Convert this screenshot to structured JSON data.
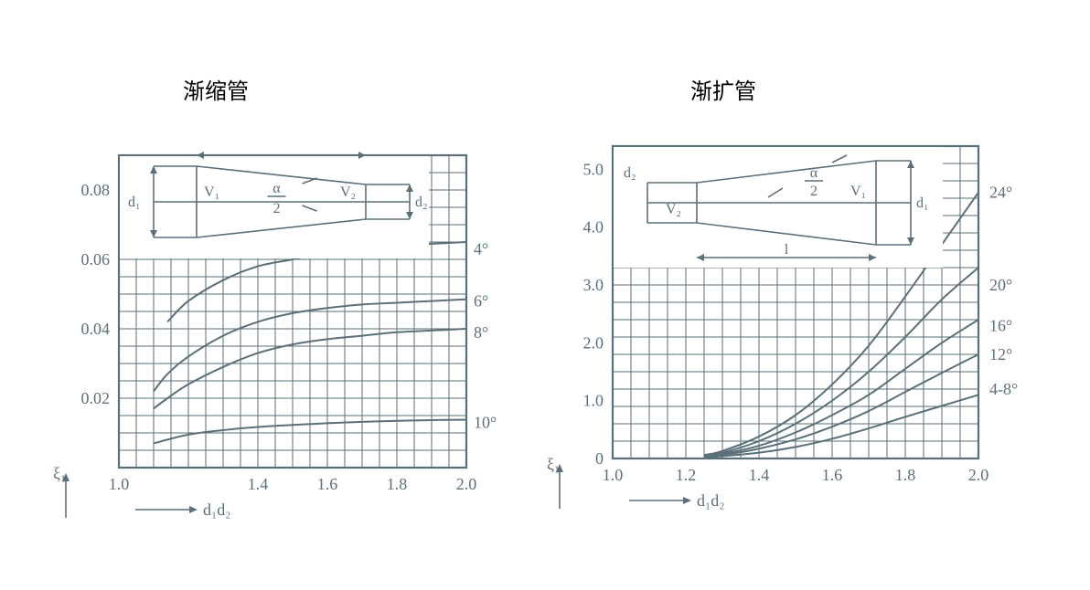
{
  "colors": {
    "background": "#ffffff",
    "ink": "#5a6f78",
    "title_color": "#000000"
  },
  "typography": {
    "title_fontsize": 24,
    "tick_fontsize": 18,
    "axis_label_fontsize": 18,
    "curve_label_fontsize": 18,
    "schematic_fontsize": 16
  },
  "left_chart": {
    "title": "渐缩管",
    "type": "line",
    "y_label": "ξ₁",
    "x_label": "d₁d₂",
    "xlim": [
      1.0,
      2.0
    ],
    "ylim": [
      0.0,
      0.09
    ],
    "xtick_labels": [
      "1.0",
      "1.4",
      "1.6",
      "1.8",
      "2.0"
    ],
    "xtick_values": [
      1.0,
      1.4,
      1.6,
      1.8,
      2.0
    ],
    "ytick_labels": [
      "0.02",
      "0.04",
      "0.06",
      "0.08"
    ],
    "ytick_values": [
      0.02,
      0.04,
      0.06,
      0.08
    ],
    "grid_x_count": 20,
    "grid_y_count": 18,
    "background_color": "#ffffff",
    "grid_color": "#5a6f78",
    "line_width": 2,
    "curves": [
      {
        "label": "4°",
        "points": [
          [
            1.14,
            0.042
          ],
          [
            1.2,
            0.048
          ],
          [
            1.3,
            0.054
          ],
          [
            1.4,
            0.058
          ],
          [
            1.5,
            0.06
          ],
          [
            1.6,
            0.062
          ],
          [
            1.7,
            0.063
          ],
          [
            1.8,
            0.064
          ],
          [
            1.9,
            0.0645
          ],
          [
            2.0,
            0.065
          ]
        ]
      },
      {
        "label": "6°",
        "points": [
          [
            1.1,
            0.022
          ],
          [
            1.14,
            0.027
          ],
          [
            1.2,
            0.032
          ],
          [
            1.3,
            0.038
          ],
          [
            1.4,
            0.042
          ],
          [
            1.5,
            0.0445
          ],
          [
            1.6,
            0.046
          ],
          [
            1.7,
            0.047
          ],
          [
            1.8,
            0.0475
          ],
          [
            1.9,
            0.048
          ],
          [
            2.0,
            0.0485
          ]
        ]
      },
      {
        "label": "8°",
        "points": [
          [
            1.1,
            0.017
          ],
          [
            1.14,
            0.02
          ],
          [
            1.2,
            0.024
          ],
          [
            1.3,
            0.029
          ],
          [
            1.4,
            0.033
          ],
          [
            1.5,
            0.0355
          ],
          [
            1.6,
            0.037
          ],
          [
            1.7,
            0.038
          ],
          [
            1.8,
            0.039
          ],
          [
            1.9,
            0.0395
          ],
          [
            2.0,
            0.04
          ]
        ]
      },
      {
        "label": "10°",
        "points": [
          [
            1.1,
            0.007
          ],
          [
            1.2,
            0.0095
          ],
          [
            1.3,
            0.0108
          ],
          [
            1.4,
            0.0117
          ],
          [
            1.5,
            0.0123
          ],
          [
            1.6,
            0.0128
          ],
          [
            1.7,
            0.0132
          ],
          [
            1.8,
            0.0135
          ],
          [
            1.9,
            0.0137
          ],
          [
            2.0,
            0.0138
          ]
        ]
      }
    ],
    "schematic": {
      "d1": "d₁",
      "d2": "d₂",
      "v1": "V₁",
      "v2": "V₂",
      "alpha": "α",
      "half": "2"
    }
  },
  "right_chart": {
    "title": "渐扩管",
    "type": "line",
    "y_label": "ξ₁",
    "x_label": "d₁d₂",
    "xlim": [
      1.0,
      2.0
    ],
    "ylim": [
      0.0,
      5.4
    ],
    "xtick_labels": [
      "1.0",
      "1.2",
      "1.4",
      "1.6",
      "1.8",
      "2.0"
    ],
    "xtick_values": [
      1.0,
      1.2,
      1.4,
      1.6,
      1.8,
      2.0
    ],
    "ytick_labels": [
      "0",
      "1.0",
      "2.0",
      "3.0",
      "4.0",
      "5.0"
    ],
    "ytick_values": [
      0,
      1.0,
      2.0,
      3.0,
      4.0,
      5.0
    ],
    "grid_x_count": 20,
    "grid_y_count": 18,
    "background_color": "#ffffff",
    "grid_color": "#5a6f78",
    "line_width": 2,
    "curves": [
      {
        "label": "24°",
        "points": [
          [
            1.25,
            0.06
          ],
          [
            1.3,
            0.13
          ],
          [
            1.4,
            0.38
          ],
          [
            1.5,
            0.75
          ],
          [
            1.6,
            1.28
          ],
          [
            1.7,
            1.95
          ],
          [
            1.8,
            2.8
          ],
          [
            1.9,
            3.7
          ],
          [
            2.0,
            4.6
          ]
        ]
      },
      {
        "label": "20°",
        "points": [
          [
            1.25,
            0.05
          ],
          [
            1.3,
            0.1
          ],
          [
            1.4,
            0.3
          ],
          [
            1.5,
            0.6
          ],
          [
            1.6,
            1.0
          ],
          [
            1.7,
            1.5
          ],
          [
            1.8,
            2.1
          ],
          [
            1.9,
            2.75
          ],
          [
            2.0,
            3.3
          ]
        ]
      },
      {
        "label": "16°",
        "points": [
          [
            1.25,
            0.04
          ],
          [
            1.3,
            0.08
          ],
          [
            1.4,
            0.22
          ],
          [
            1.5,
            0.45
          ],
          [
            1.6,
            0.75
          ],
          [
            1.7,
            1.1
          ],
          [
            1.8,
            1.55
          ],
          [
            1.9,
            2.0
          ],
          [
            2.0,
            2.4
          ]
        ]
      },
      {
        "label": "12°",
        "points": [
          [
            1.25,
            0.03
          ],
          [
            1.3,
            0.06
          ],
          [
            1.4,
            0.17
          ],
          [
            1.5,
            0.33
          ],
          [
            1.6,
            0.55
          ],
          [
            1.7,
            0.82
          ],
          [
            1.8,
            1.15
          ],
          [
            1.9,
            1.48
          ],
          [
            2.0,
            1.8
          ]
        ]
      },
      {
        "label": "4-8°",
        "points": [
          [
            1.25,
            0.02
          ],
          [
            1.3,
            0.04
          ],
          [
            1.4,
            0.1
          ],
          [
            1.5,
            0.2
          ],
          [
            1.6,
            0.34
          ],
          [
            1.7,
            0.52
          ],
          [
            1.8,
            0.72
          ],
          [
            1.9,
            0.91
          ],
          [
            2.0,
            1.1
          ]
        ]
      }
    ],
    "schematic": {
      "d1": "d₁",
      "d2": "d₂",
      "v1": "V₁",
      "v2": "V₂",
      "alpha": "α",
      "half": "2",
      "length": "l"
    }
  }
}
